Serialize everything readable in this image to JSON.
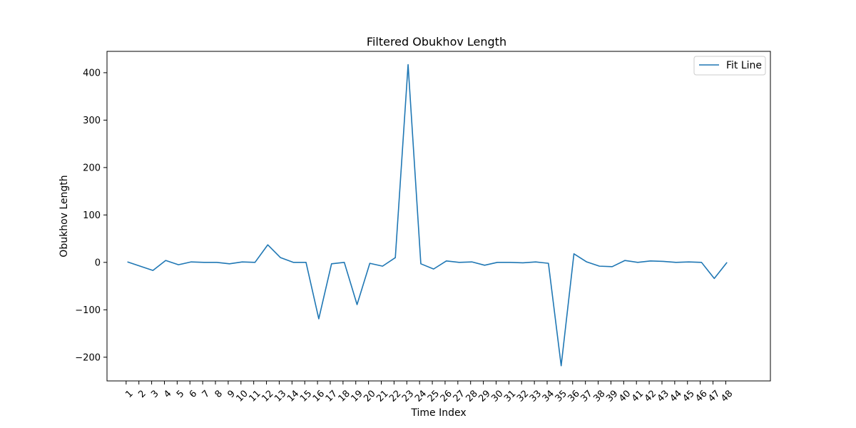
{
  "chart_data": {
    "type": "line",
    "title": "Filtered Obukhov Length",
    "xlabel": "Time Index",
    "ylabel": "Obukhov Length",
    "x_tick_labels": [
      "1",
      "2",
      "3",
      "4",
      "5",
      "6",
      "7",
      "8",
      "9",
      "10",
      "11",
      "12",
      "13",
      "14",
      "15",
      "16",
      "17",
      "18",
      "19",
      "20",
      "21",
      "22",
      "23",
      "24",
      "25",
      "26",
      "27",
      "28",
      "29",
      "30",
      "31",
      "32",
      "33",
      "34",
      "35",
      "36",
      "37",
      "38",
      "39",
      "40",
      "41",
      "42",
      "43",
      "44",
      "45",
      "46",
      "47",
      "48"
    ],
    "y_ticks": [
      -200,
      -100,
      0,
      100,
      200,
      300,
      400
    ],
    "ylim": [
      -250,
      445
    ],
    "xlim": [
      -1.5,
      50.5
    ],
    "grid": false,
    "legend_position": "top-right",
    "series": [
      {
        "name": "Fit Line",
        "color": "#1f77b4",
        "values": [
          1,
          -8,
          -17,
          4,
          -5,
          1,
          0,
          0,
          -3,
          1,
          0,
          37,
          10,
          0,
          0,
          -119,
          -3,
          0,
          -89,
          -2,
          -8,
          10,
          417,
          -3,
          -14,
          3,
          0,
          1,
          -6,
          0,
          0,
          -1,
          1,
          -2,
          -218,
          18,
          1,
          -8,
          -9,
          4,
          0,
          3,
          2,
          0,
          1,
          0,
          -34,
          0
        ]
      }
    ]
  }
}
